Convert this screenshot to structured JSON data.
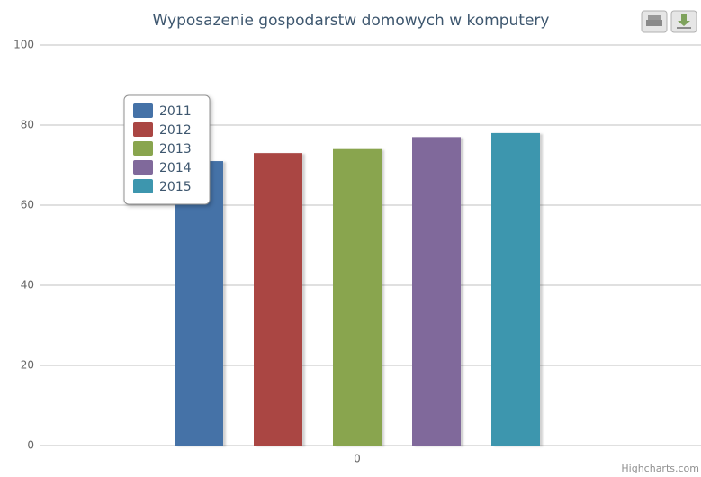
{
  "chart_data": {
    "type": "bar",
    "title": "Wyposazenie gospodarstw domowych w komputery",
    "categories": [
      "0"
    ],
    "series": [
      {
        "name": "2011",
        "color": "#4572A7",
        "values": [
          71
        ]
      },
      {
        "name": "2012",
        "color": "#AA4643",
        "values": [
          73
        ]
      },
      {
        "name": "2013",
        "color": "#89A54E",
        "values": [
          74
        ]
      },
      {
        "name": "2014",
        "color": "#80699B",
        "values": [
          77
        ]
      },
      {
        "name": "2015",
        "color": "#3D96AE",
        "values": [
          78
        ]
      }
    ],
    "ylim": [
      0,
      100
    ],
    "yticks": [
      0,
      20,
      40,
      60,
      80,
      100
    ],
    "grid": true,
    "legend": "top-left",
    "credits": "Highcharts.com"
  }
}
